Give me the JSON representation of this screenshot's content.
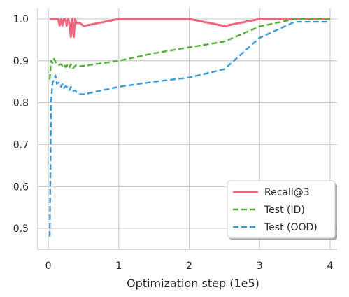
{
  "chart_data": {
    "type": "line",
    "title": "",
    "xlabel": "Optimization step (1e5)",
    "ylabel": "",
    "xlim": [
      -0.15,
      4.1
    ],
    "ylim": [
      0.45,
      1.025
    ],
    "xticks": [
      0,
      1,
      2,
      3,
      4
    ],
    "yticks": [
      0.5,
      0.6,
      0.7,
      0.8,
      0.9,
      1.0
    ],
    "xtick_labels": [
      "0",
      "1",
      "2",
      "3",
      "4"
    ],
    "ytick_labels": [
      "0.5",
      "0.6",
      "0.7",
      "0.8",
      "0.9",
      "1.0"
    ],
    "grid": true,
    "legend_position": "lower-right",
    "series": [
      {
        "name": "Recall@3",
        "color": "#f0667f",
        "style": "solid",
        "x": [
          0.02,
          0.05,
          0.1,
          0.14,
          0.16,
          0.18,
          0.2,
          0.22,
          0.24,
          0.26,
          0.28,
          0.3,
          0.32,
          0.34,
          0.36,
          0.38,
          0.4,
          0.42,
          0.45,
          0.5,
          1.0,
          1.5,
          2.0,
          2.5,
          3.0,
          3.5,
          4.0
        ],
        "y": [
          1.0,
          1.0,
          1.0,
          1.0,
          0.984,
          1.0,
          0.984,
          1.0,
          1.0,
          0.984,
          1.0,
          0.99,
          0.957,
          1.0,
          0.957,
          1.0,
          0.99,
          0.99,
          0.99,
          0.983,
          1.0,
          1.0,
          1.0,
          0.983,
          1.0,
          1.0,
          1.0
        ]
      },
      {
        "name": "Test (ID)",
        "color": "#4eae35",
        "style": "dashed",
        "x": [
          0.02,
          0.04,
          0.06,
          0.08,
          0.1,
          0.12,
          0.15,
          0.18,
          0.2,
          0.22,
          0.25,
          0.28,
          0.3,
          0.32,
          0.35,
          0.38,
          0.4,
          0.45,
          0.5,
          1.0,
          1.5,
          2.0,
          2.5,
          3.0,
          3.5,
          4.0
        ],
        "y": [
          0.855,
          0.9,
          0.895,
          0.905,
          0.898,
          0.892,
          0.89,
          0.892,
          0.888,
          0.892,
          0.885,
          0.892,
          0.885,
          0.892,
          0.882,
          0.888,
          0.89,
          0.887,
          0.888,
          0.9,
          0.918,
          0.932,
          0.946,
          0.982,
          1.0,
          1.0
        ]
      },
      {
        "name": "Test (OOD)",
        "color": "#3a9ad9",
        "style": "dashed",
        "x": [
          0.02,
          0.04,
          0.06,
          0.08,
          0.1,
          0.12,
          0.15,
          0.18,
          0.2,
          0.22,
          0.25,
          0.28,
          0.3,
          0.32,
          0.35,
          0.38,
          0.4,
          0.45,
          0.5,
          1.0,
          1.5,
          2.0,
          2.5,
          3.0,
          3.5,
          4.0
        ],
        "y": [
          0.48,
          0.8,
          0.848,
          0.855,
          0.865,
          0.845,
          0.848,
          0.838,
          0.845,
          0.835,
          0.84,
          0.835,
          0.83,
          0.838,
          0.828,
          0.83,
          0.825,
          0.82,
          0.82,
          0.838,
          0.85,
          0.86,
          0.88,
          0.955,
          0.993,
          0.993
        ]
      }
    ]
  }
}
